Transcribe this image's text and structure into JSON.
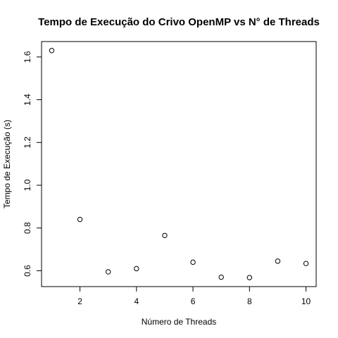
{
  "chart_data": {
    "type": "scatter",
    "title": "Tempo de Execução do Crivo OpenMP vs N° de Threads",
    "xlabel": "Número de Threads",
    "ylabel": "Tempo de Execução (s)",
    "xlim": [
      0.64,
      10.36
    ],
    "ylim": [
      0.526,
      1.672
    ],
    "xticks": [
      2,
      4,
      6,
      8,
      10
    ],
    "yticks": [
      0.6,
      0.8,
      1.0,
      1.2,
      1.4,
      1.6
    ],
    "xtick_labels": [
      "2",
      "4",
      "6",
      "8",
      "10"
    ],
    "ytick_labels": [
      "0.6",
      "0.8",
      "1.0",
      "1.2",
      "1.4",
      "1.6"
    ],
    "grid": false,
    "marker": "open-circle",
    "series": [
      {
        "x": [
          1,
          2,
          3,
          4,
          5,
          6,
          7,
          8,
          9,
          10
        ],
        "y": [
          1.63,
          0.84,
          0.595,
          0.61,
          0.765,
          0.64,
          0.57,
          0.568,
          0.645,
          0.634
        ]
      }
    ],
    "colors": {
      "marker": "#000000",
      "axis": "#000000",
      "background": "#ffffff"
    }
  }
}
